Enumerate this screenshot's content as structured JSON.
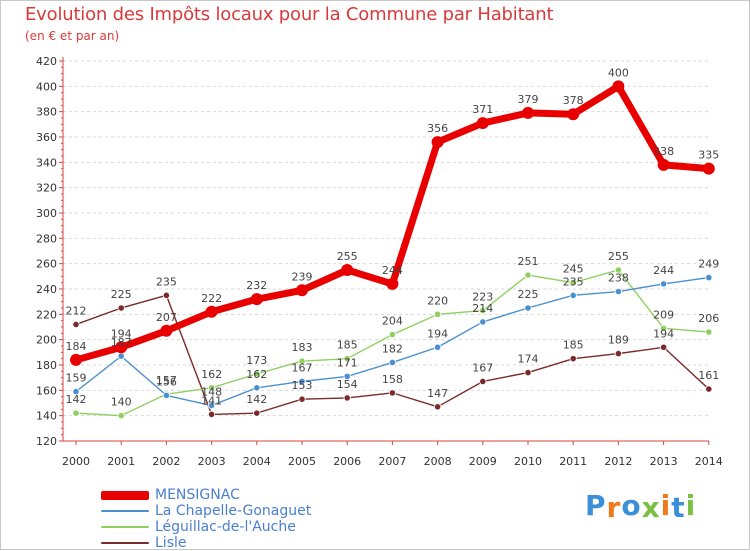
{
  "header": {
    "title": "Evolution des Impôts locaux pour la Commune par Habitant",
    "subtitle": "(en € et par an)"
  },
  "logo": {
    "text": "Proxiti",
    "colors": [
      "#3a8fd8",
      "#f07a1a",
      "#3a8fd8",
      "#7ac043",
      "#f07a1a",
      "#3a8fd8",
      "#7ac043"
    ]
  },
  "colors": {
    "title": "#d93a3a",
    "axis": "#d94040",
    "grid": "#d8d8d8",
    "tick_label": "#333333",
    "value_label": "#444444"
  },
  "chart_data": {
    "type": "line",
    "title": "Evolution des Impôts locaux pour la Commune par Habitant",
    "subtitle": "(en € et par an)",
    "x": [
      "2000",
      "2001",
      "2002",
      "2003",
      "2004",
      "2005",
      "2006",
      "2007",
      "2008",
      "2009",
      "2010",
      "2011",
      "2012",
      "2013",
      "2014"
    ],
    "ylim": [
      120,
      420
    ],
    "yticks": [
      120,
      140,
      160,
      180,
      200,
      220,
      240,
      260,
      280,
      300,
      320,
      340,
      360,
      380,
      400,
      420
    ],
    "grid": "horizontal dashed",
    "legend_position": "bottom-left",
    "series": [
      {
        "name": "MENSIGNAC",
        "color": "#e80000",
        "values": [
          184,
          194,
          207,
          222,
          232,
          239,
          255,
          244,
          356,
          371,
          379,
          378,
          400,
          338,
          335
        ],
        "labels": [
          "184",
          "194",
          "207",
          "222",
          "232",
          "239",
          "255",
          "244",
          "356",
          "371",
          "379",
          "378",
          "400",
          "338",
          "335"
        ]
      },
      {
        "name": "La Chapelle-Gonaguet",
        "color": "#4a90d0",
        "values": [
          159,
          187,
          156,
          148,
          162,
          167,
          171,
          182,
          194,
          214,
          225,
          235,
          238,
          244,
          249
        ],
        "labels": [
          "159",
          "187",
          "156",
          "148",
          "162",
          "167",
          "171",
          "182",
          "194",
          "214",
          "225",
          "235",
          "238",
          "244",
          "249"
        ]
      },
      {
        "name": "Léguillac-de-l'Auche",
        "color": "#8fd060",
        "values": [
          142,
          140,
          157,
          162,
          173,
          183,
          185,
          204,
          220,
          223,
          251,
          245,
          255,
          209,
          206
        ],
        "labels": [
          "142",
          "140",
          "157",
          "162",
          "173",
          "183",
          "185",
          "204",
          "220",
          "223",
          "251",
          "245",
          "255",
          "209",
          "206"
        ]
      },
      {
        "name": "Lisle",
        "color": "#7a2a2a",
        "values": [
          212,
          225,
          235,
          141,
          142,
          153,
          154,
          158,
          147,
          167,
          174,
          185,
          189,
          194,
          161
        ],
        "labels": [
          "212",
          "225",
          "235",
          "141",
          "142",
          "153",
          "154",
          "158",
          "147",
          "167",
          "174",
          "185",
          "189",
          "194",
          "161"
        ]
      }
    ]
  }
}
